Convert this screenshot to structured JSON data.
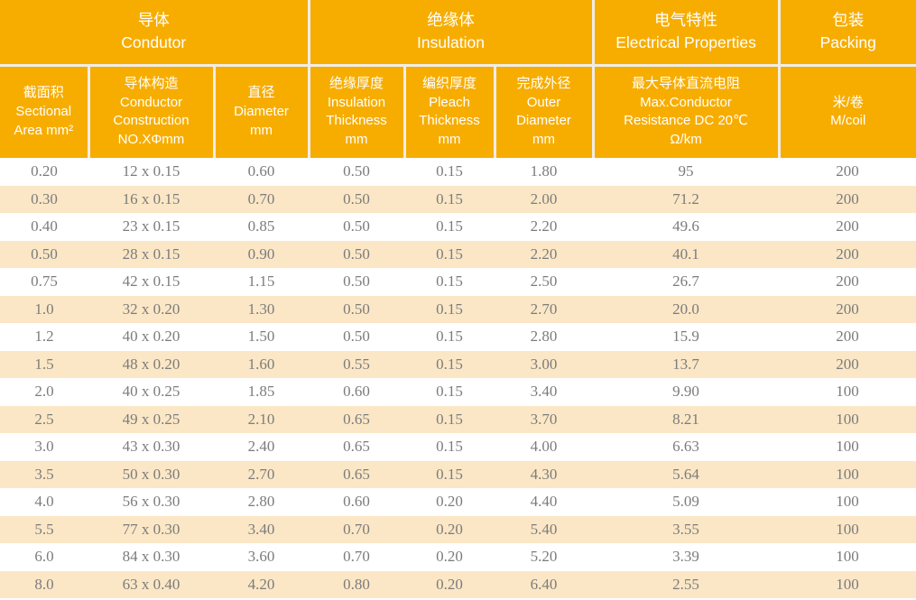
{
  "colors": {
    "header_bg": "#F7AD00",
    "divider": "#F0EDE6",
    "row_alt_bg": "#FBE7C6",
    "body_text": "#7C7C7C",
    "header_text": "#FFFFFF"
  },
  "table": {
    "header": {
      "groups": [
        {
          "label": "导体\nCondutor",
          "span": 3
        },
        {
          "label": "绝缘体\nInsulation",
          "span": 3
        },
        {
          "label": "电气特性\nElectrical Properties",
          "span": 1
        },
        {
          "label": "包装\nPacking",
          "span": 1
        }
      ],
      "columns": [
        "截面积\nSectional\nArea mm²",
        "导体构造\nConductor\nConstruction\nNO.XΦmm",
        "直径\nDiameter\nmm",
        "绝缘厚度\nInsulation\nThickness\nmm",
        "编织厚度\nPleach\nThickness\nmm",
        "完成外径\nOuter\nDiameter\nmm",
        "最大导体直流电阻\nMax.Conductor\nResistance DC 20℃\nΩ/km",
        "米/卷\nM/coil"
      ]
    },
    "rows": [
      [
        "0.20",
        "12 x 0.15",
        "0.60",
        "0.50",
        "0.15",
        "1.80",
        "95",
        "200"
      ],
      [
        "0.30",
        "16 x 0.15",
        "0.70",
        "0.50",
        "0.15",
        "2.00",
        "71.2",
        "200"
      ],
      [
        "0.40",
        "23 x 0.15",
        "0.85",
        "0.50",
        "0.15",
        "2.20",
        "49.6",
        "200"
      ],
      [
        "0.50",
        "28 x 0.15",
        "0.90",
        "0.50",
        "0.15",
        "2.20",
        "40.1",
        "200"
      ],
      [
        "0.75",
        "42 x 0.15",
        "1.15",
        "0.50",
        "0.15",
        "2.50",
        "26.7",
        "200"
      ],
      [
        "1.0",
        "32 x 0.20",
        "1.30",
        "0.50",
        "0.15",
        "2.70",
        "20.0",
        "200"
      ],
      [
        "1.2",
        "40 x 0.20",
        "1.50",
        "0.50",
        "0.15",
        "2.80",
        "15.9",
        "200"
      ],
      [
        "1.5",
        "48 x 0.20",
        "1.60",
        "0.55",
        "0.15",
        "3.00",
        "13.7",
        "200"
      ],
      [
        "2.0",
        "40 x 0.25",
        "1.85",
        "0.60",
        "0.15",
        "3.40",
        "9.90",
        "100"
      ],
      [
        "2.5",
        "49 x 0.25",
        "2.10",
        "0.65",
        "0.15",
        "3.70",
        "8.21",
        "100"
      ],
      [
        "3.0",
        "43 x 0.30",
        "2.40",
        "0.65",
        "0.15",
        "4.00",
        "6.63",
        "100"
      ],
      [
        "3.5",
        "50 x 0.30",
        "2.70",
        "0.65",
        "0.15",
        "4.30",
        "5.64",
        "100"
      ],
      [
        "4.0",
        "56 x 0.30",
        "2.80",
        "0.60",
        "0.20",
        "4.40",
        "5.09",
        "100"
      ],
      [
        "5.5",
        "77 x 0.30",
        "3.40",
        "0.70",
        "0.20",
        "5.40",
        "3.55",
        "100"
      ],
      [
        "6.0",
        "84 x 0.30",
        "3.60",
        "0.70",
        "0.20",
        "5.20",
        "3.39",
        "100"
      ],
      [
        "8.0",
        "63 x 0.40",
        "4.20",
        "0.80",
        "0.20",
        "6.40",
        "2.55",
        "100"
      ]
    ]
  }
}
